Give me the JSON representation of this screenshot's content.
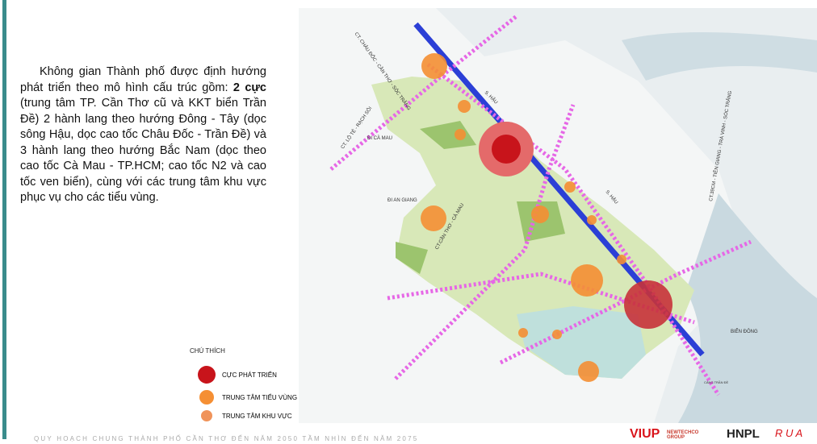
{
  "paragraph": {
    "before": "Không gian Thành phố được định hướng phát triển theo mô hình cấu trúc gồm: ",
    "bold": "2 cực",
    "after": " (trung tâm TP. Cần Thơ cũ và KKT biển Trần Đề) 2 hành lang theo hướng Đông - Tây (dọc sông Hậu, dọc cao tốc Châu Đốc - Trần Đề) và 3 hành lang theo hướng Bắc Nam (dọc theo cao tốc Cà Mau - TP.HCM; cao tốc N2 và cao tốc ven biển), cùng với các trung tâm khu vực phục vụ cho các tiểu vùng."
  },
  "legend": {
    "title": "CHÚ THÍCH",
    "items": [
      "CỰC PHÁT TRIỂN",
      "TRUNG TÂM TIỂU VÙNG",
      "TRUNG TÂM KHU VỰC"
    ]
  },
  "map_labels": [
    "CT. CHÂU ĐỐC - CẦN THƠ - SÓC TRĂNG",
    "S. HẬU",
    "CT. LỘ TẺ - RẠCH SỎI",
    "ĐI CÀ MAU",
    "ĐI AN GIANG",
    "CT.CẦN THƠ - CÀ MAU",
    "S. HẬU",
    "CT.39CM - TIỀN GIANG - TRÀ VINH - SÓC TRĂNG",
    "BIỂN ĐÔNG",
    "CẢNG TRẦN ĐỀ"
  ],
  "footer": "QUY HOẠCH CHUNG THÀNH PHỐ CẦN THƠ ĐẾN NĂM 2050 TẦM NHÌN ĐẾN NĂM 2075",
  "logos": [
    "VIUP",
    "NEWTECHCO GROUP",
    "HNPL",
    "R U A"
  ]
}
